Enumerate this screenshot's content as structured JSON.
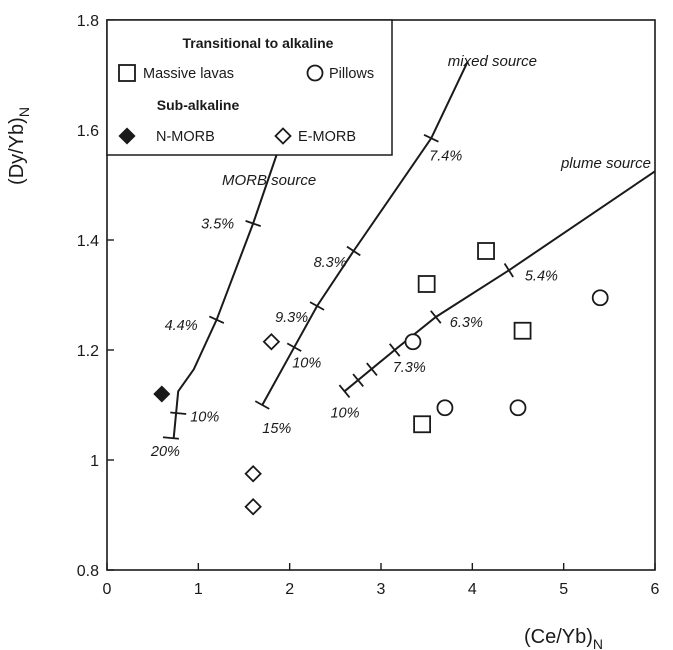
{
  "chart_data": {
    "type": "scatter",
    "xlabel": "(Ce/Yb)",
    "xlabel_sub": "N",
    "ylabel": "(Dy/Yb)",
    "ylabel_sub": "N",
    "xlim": [
      0,
      6
    ],
    "ylim": [
      0.8,
      1.8
    ],
    "x_ticks": [
      0,
      1,
      2,
      3,
      4,
      5,
      6
    ],
    "x_tick_labels": [
      "0",
      "1",
      "2",
      "3",
      "4",
      "5",
      "6"
    ],
    "y_ticks": [
      0.8,
      1.0,
      1.2,
      1.4,
      1.6,
      1.8
    ],
    "y_tick_labels": [
      "0.8",
      "1",
      "1.2",
      "1.4",
      "1.6",
      "1.8"
    ],
    "grid": false,
    "legend": {
      "placement": "top-left",
      "group_titles": [
        "Transitional to alkaline",
        "Sub-alkaline"
      ],
      "entries": [
        {
          "label": "Massive lavas",
          "marker": "open-square"
        },
        {
          "label": "Pillows",
          "marker": "open-circle"
        },
        {
          "label": "N-MORB",
          "marker": "filled-diamond"
        },
        {
          "label": "E-MORB",
          "marker": "open-diamond"
        }
      ]
    },
    "series": [
      {
        "name": "Massive lavas",
        "marker": "open-square",
        "points": [
          [
            3.5,
            1.32
          ],
          [
            4.15,
            1.38
          ],
          [
            4.55,
            1.235
          ],
          [
            3.45,
            1.065
          ]
        ]
      },
      {
        "name": "Pillows",
        "marker": "open-circle",
        "points": [
          [
            3.35,
            1.215
          ],
          [
            3.7,
            1.095
          ],
          [
            4.5,
            1.095
          ],
          [
            5.4,
            1.295
          ]
        ]
      },
      {
        "name": "N-MORB",
        "marker": "filled-diamond",
        "points": [
          [
            0.6,
            1.12
          ]
        ]
      },
      {
        "name": "E-MORB",
        "marker": "open-diamond",
        "points": [
          [
            1.8,
            1.215
          ],
          [
            1.6,
            0.975
          ],
          [
            1.6,
            0.915
          ]
        ]
      }
    ],
    "melting_curves": [
      {
        "label": "MORB source",
        "line": [
          [
            0.73,
            1.04
          ],
          [
            0.78,
            1.125
          ],
          [
            0.95,
            1.165
          ],
          [
            1.2,
            1.255
          ],
          [
            1.6,
            1.43
          ],
          [
            1.95,
            1.6
          ]
        ],
        "ticks": [
          [
            0.7,
            1.04
          ],
          [
            0.78,
            1.085
          ],
          [
            1.2,
            1.255
          ],
          [
            1.6,
            1.43
          ]
        ],
        "tick_labels": [
          {
            "text": "20%",
            "at": [
              0.7,
              1.04
            ]
          },
          {
            "text": "10%",
            "at": [
              0.78,
              1.085
            ]
          },
          {
            "text": "4.4%",
            "at": [
              1.2,
              1.255
            ]
          },
          {
            "text": "3.5%",
            "at": [
              1.6,
              1.43
            ]
          }
        ]
      },
      {
        "label": "mixed source",
        "line": [
          [
            1.7,
            1.1
          ],
          [
            2.05,
            1.205
          ],
          [
            2.3,
            1.28
          ],
          [
            2.7,
            1.38
          ],
          [
            3.55,
            1.585
          ],
          [
            3.95,
            1.725
          ]
        ],
        "ticks": [
          [
            1.7,
            1.1
          ],
          [
            2.05,
            1.205
          ],
          [
            2.3,
            1.28
          ],
          [
            2.7,
            1.38
          ],
          [
            3.55,
            1.585
          ]
        ],
        "tick_labels": [
          {
            "text": "15%",
            "at": [
              1.7,
              1.1
            ]
          },
          {
            "text": "10%",
            "at": [
              2.05,
              1.205
            ]
          },
          {
            "text": "9.3%",
            "at": [
              2.3,
              1.28
            ]
          },
          {
            "text": "8.3%",
            "at": [
              2.7,
              1.38
            ]
          },
          {
            "text": "7.4%",
            "at": [
              3.55,
              1.585
            ]
          }
        ]
      },
      {
        "label": "plume source",
        "line": [
          [
            2.6,
            1.125
          ],
          [
            3.15,
            1.2
          ],
          [
            3.6,
            1.26
          ],
          [
            4.4,
            1.345
          ],
          [
            6.0,
            1.525
          ]
        ],
        "ticks": [
          [
            2.6,
            1.125
          ],
          [
            2.75,
            1.145
          ],
          [
            2.9,
            1.165
          ],
          [
            3.15,
            1.2
          ],
          [
            3.6,
            1.26
          ],
          [
            4.4,
            1.345
          ]
        ],
        "tick_labels": [
          {
            "text": "10%",
            "at": [
              2.6,
              1.125
            ]
          },
          {
            "text": "7.3%",
            "at": [
              3.15,
              1.2
            ]
          },
          {
            "text": "6.3%",
            "at": [
              3.6,
              1.26
            ]
          },
          {
            "text": "5.4%",
            "at": [
              4.4,
              1.345
            ]
          }
        ]
      }
    ]
  }
}
